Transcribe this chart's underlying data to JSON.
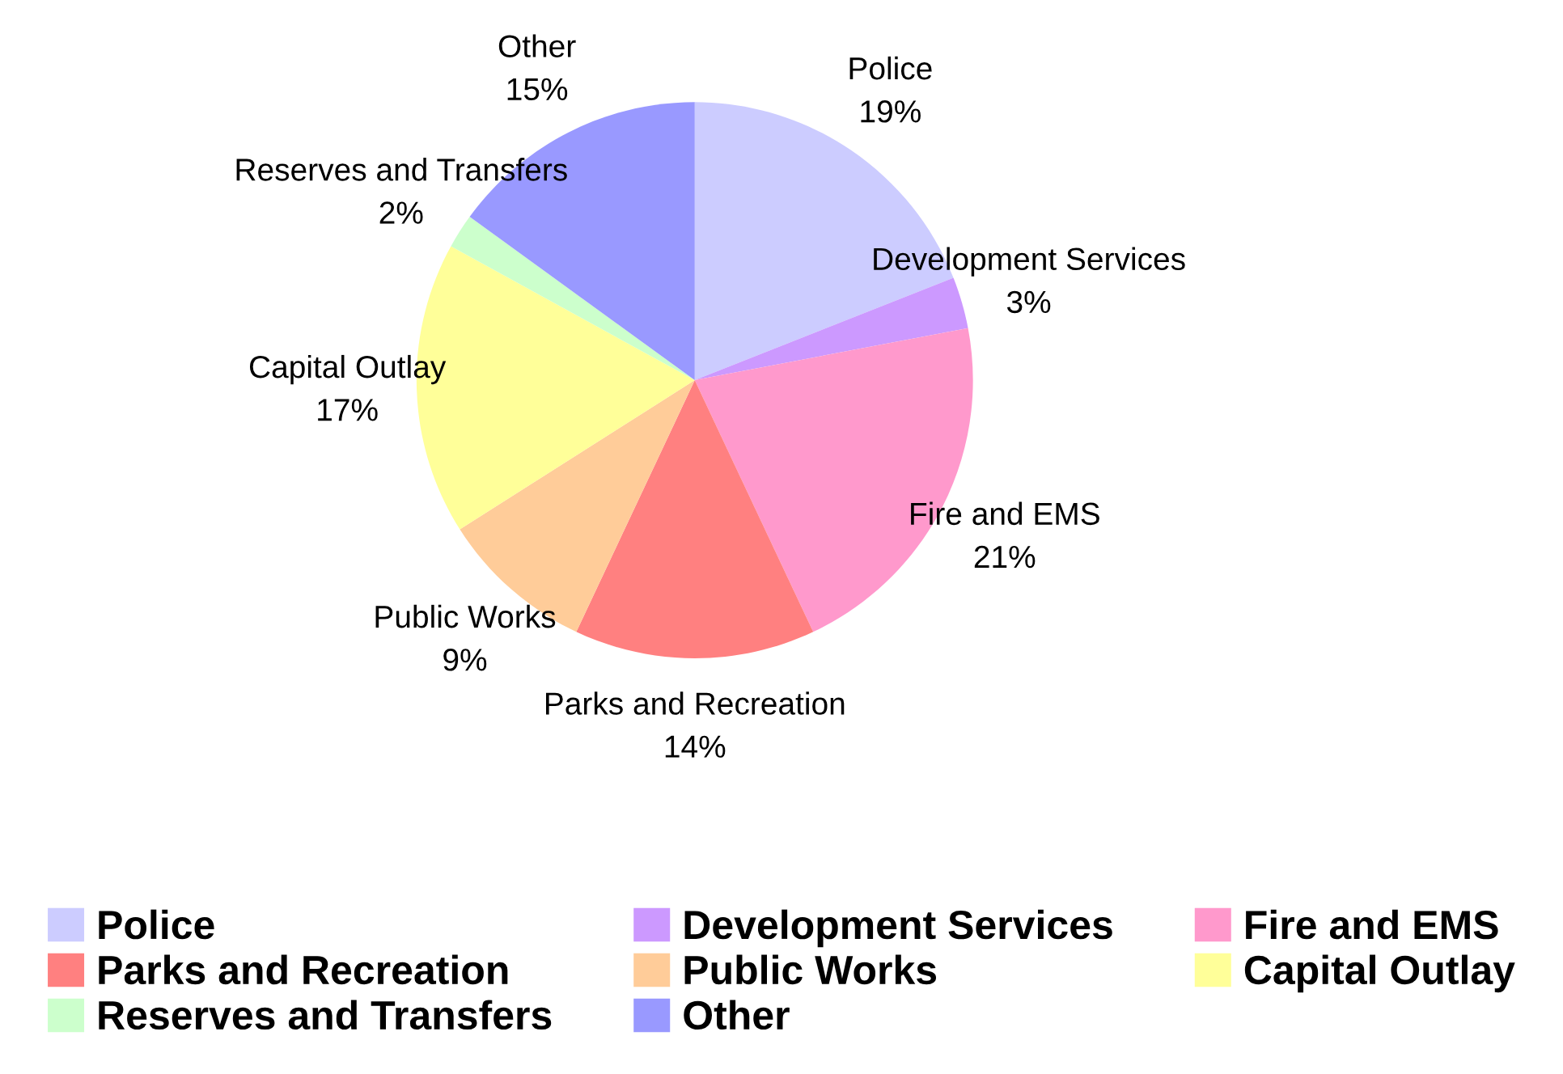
{
  "chart_data": {
    "type": "pie",
    "categories": [
      "Police",
      "Development Services",
      "Fire and EMS",
      "Parks and Recreation",
      "Public Works",
      "Capital Outlay",
      "Reserves and Transfers",
      "Other"
    ],
    "values": [
      19,
      3,
      21,
      14,
      9,
      17,
      2,
      15
    ],
    "value_labels": [
      "19%",
      "3%",
      "21%",
      "14%",
      "9%",
      "17%",
      "2%",
      "15%"
    ],
    "colors": [
      "#ccccff",
      "#cc99ff",
      "#ff99cc",
      "#ff8080",
      "#ffcc99",
      "#ffff99",
      "#ccffcc",
      "#9999ff"
    ],
    "legend": "bottom"
  }
}
